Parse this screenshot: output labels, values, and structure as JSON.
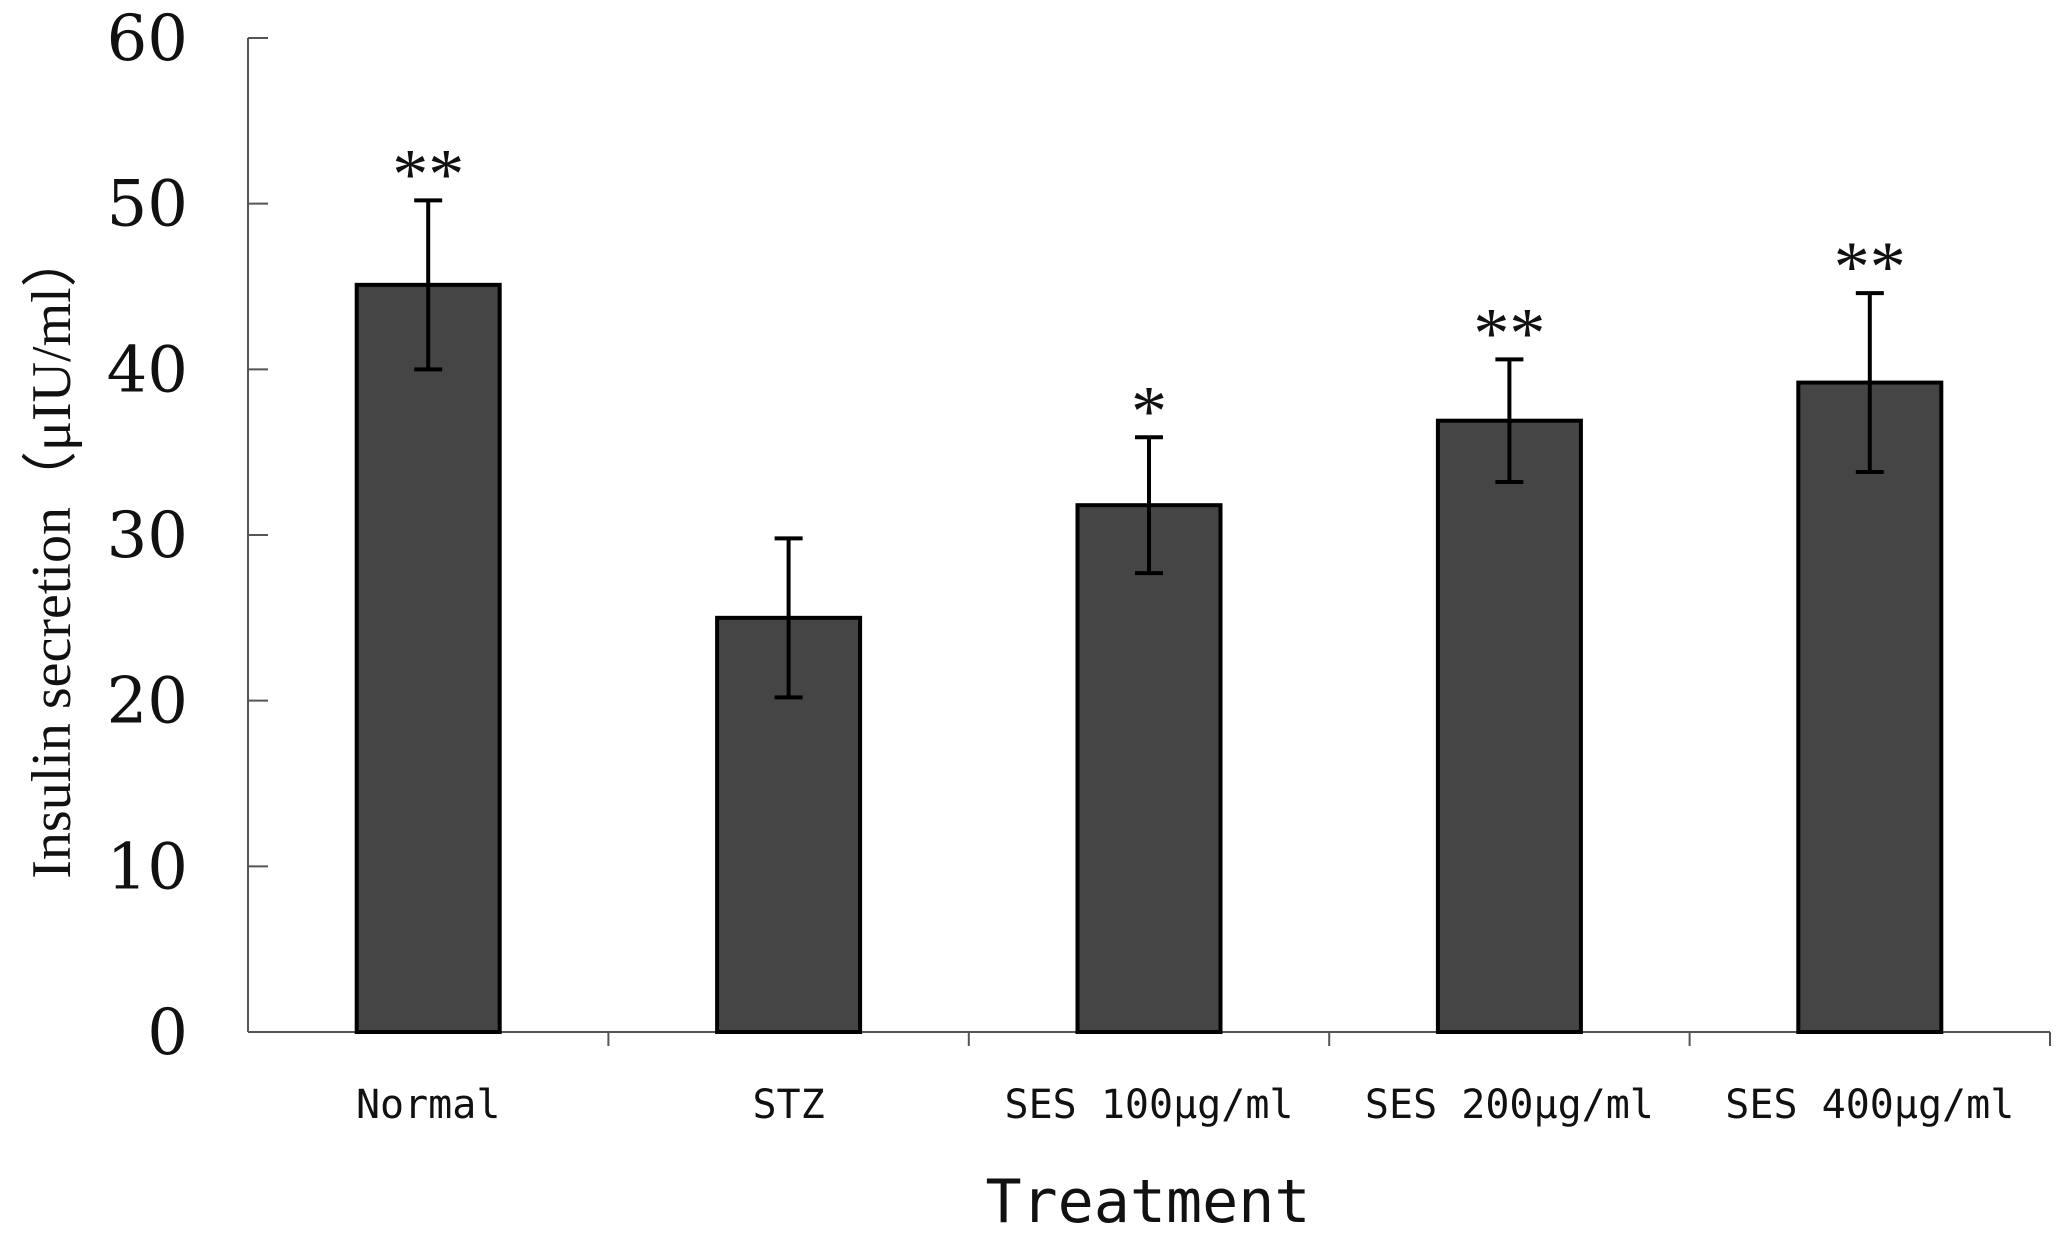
{
  "chart_data": {
    "type": "bar",
    "categories": [
      "Normal",
      "STZ",
      "SES 100μg/ml",
      "SES 200μg/ml",
      "SES 400μg/ml"
    ],
    "series": [
      {
        "values": [
          45.1,
          25.0,
          31.8,
          36.9,
          39.2
        ],
        "errors": [
          5.1,
          4.8,
          4.1,
          3.7,
          5.4
        ],
        "significance": [
          "**",
          "",
          "*",
          "**",
          "**"
        ]
      }
    ],
    "xlabel": "Treatment",
    "ylabel": "Insulin secretion（μIU/ml）",
    "ylim": [
      0,
      60
    ],
    "yticks": [
      "0",
      "10",
      "20",
      "30",
      "40",
      "50",
      "60"
    ],
    "grid": false,
    "bar_color": "#454545",
    "edge_color": "#000000"
  }
}
